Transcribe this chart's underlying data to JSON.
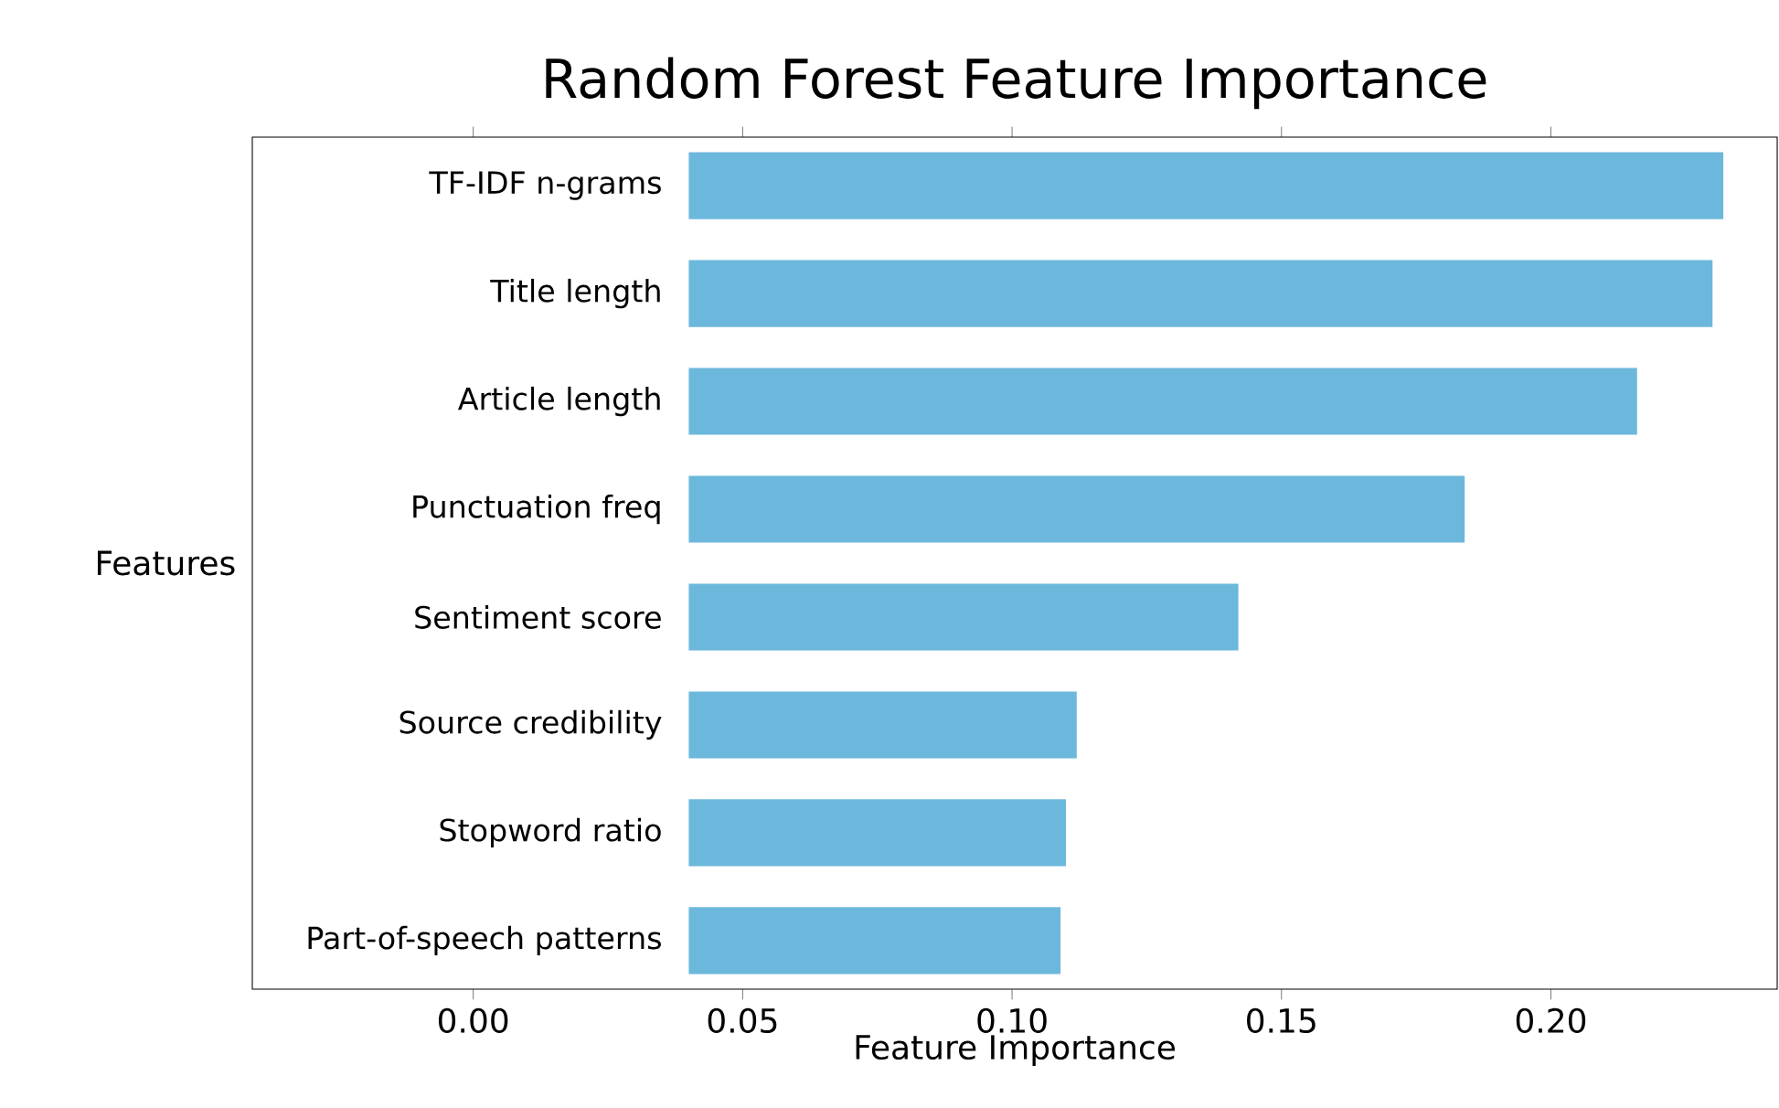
{
  "chart_data": {
    "type": "bar",
    "orientation": "horizontal",
    "title": "Random Forest Feature Importance",
    "xlabel": "Feature Importance",
    "ylabel": "Features",
    "categories": [
      "TF-IDF n-grams",
      "Title length",
      "Article length",
      "Punctuation freq",
      "Sentiment score",
      "Source credibility",
      "Stopword ratio",
      "Part-of-speech patterns"
    ],
    "base": [
      0.04,
      0.04,
      0.04,
      0.04,
      0.04,
      0.04,
      0.04,
      0.04
    ],
    "values": [
      0.192,
      0.19,
      0.176,
      0.144,
      0.102,
      0.072,
      0.07,
      0.069
    ],
    "color": "#6cb8dc",
    "xlim": [
      -0.041,
      0.242
    ],
    "xticks": [
      {
        "value": 0,
        "label": "0.00"
      },
      {
        "value": 0.05,
        "label": "0.05"
      },
      {
        "value": 0.1,
        "label": "0.10"
      },
      {
        "value": 0.15,
        "label": "0.15"
      },
      {
        "value": 0.2,
        "label": "0.20"
      }
    ]
  }
}
